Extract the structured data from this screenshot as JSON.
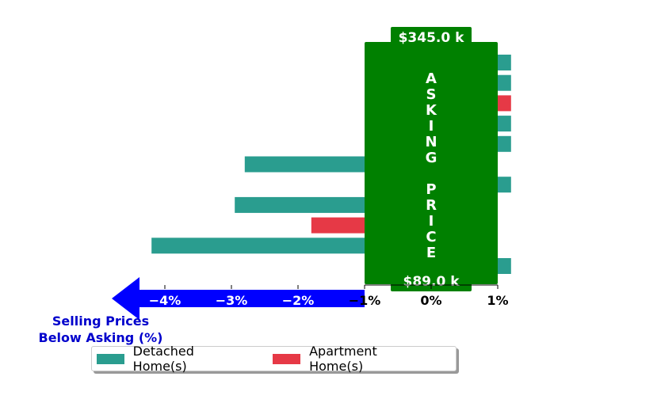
{
  "chart_data": {
    "type": "bar",
    "orientation": "horizontal",
    "xlim": [
      -5.3,
      2.0
    ],
    "x_ticks": [
      -4,
      -3,
      -2,
      -1,
      0,
      1
    ],
    "x_tick_labels": [
      "−4%",
      "−3%",
      "−2%",
      "−1%",
      "0%",
      "1%"
    ],
    "xlabel": "Selling Prices\nBelow Asking (%)",
    "series": [
      {
        "name": "Detached Home(s)",
        "color": "#2a9d8f",
        "key": "detached"
      },
      {
        "name": "Apartment Home(s)",
        "color": "#e63946",
        "key": "apartment"
      }
    ],
    "bars": [
      {
        "series": "detached",
        "value": 1.2
      },
      {
        "series": "detached",
        "value": 1.2
      },
      {
        "series": "apartment",
        "value": 1.2
      },
      {
        "series": "detached",
        "value": 1.2
      },
      {
        "series": "detached",
        "value": 1.2
      },
      {
        "series": "detached",
        "value": -2.8
      },
      {
        "series": "detached",
        "value": 1.2
      },
      {
        "series": "detached",
        "value": -2.95
      },
      {
        "series": "apartment",
        "value": -1.8
      },
      {
        "series": "detached",
        "value": -4.2
      },
      {
        "series": "detached",
        "value": 1.2
      }
    ],
    "asking_band": {
      "x_range": [
        -1,
        1
      ],
      "color": "#008000"
    },
    "asking_label": [
      "A",
      "S",
      "K",
      "I",
      "N",
      "G",
      "",
      "P",
      "R",
      "I",
      "C",
      "E"
    ],
    "top_price_label": "$345.0 k",
    "bottom_price_label": "$89.0 k",
    "arrow_color": "#0000ff",
    "xlabel_color": "#0000cc"
  },
  "legend": {
    "detached_label": "Detached Home(s)",
    "apartment_label": "Apartment Home(s)"
  },
  "colors": {
    "detached": "#2a9d8f",
    "apartment": "#e63946"
  }
}
